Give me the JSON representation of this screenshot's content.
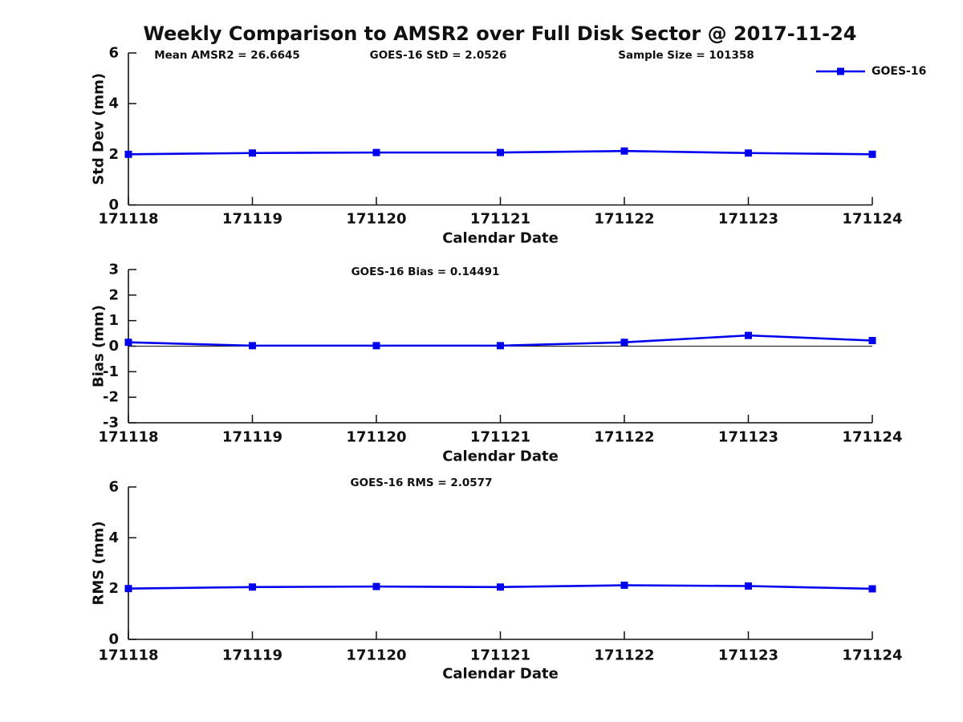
{
  "title": "Weekly Comparison to AMSR2 over Full Disk Sector @ 2017-11-24",
  "colors": {
    "series": "#0000EE",
    "axis": "#111111"
  },
  "chart_data": [
    {
      "type": "line",
      "name": "std-dev-plot",
      "annotations": [
        "Mean AMSR2 = 26.6645",
        "GOES-16 StD = 2.0526",
        "Sample Size = 101358"
      ],
      "categories": [
        "171118",
        "171119",
        "171120",
        "171121",
        "171122",
        "171123",
        "171124"
      ],
      "series": [
        {
          "name": "GOES-16",
          "values": [
            2.0,
            2.05,
            2.07,
            2.07,
            2.13,
            2.05,
            2.0
          ]
        }
      ],
      "xlabel": "Calendar Date",
      "ylabel": "Std Dev (mm)",
      "ylim": [
        0,
        6
      ],
      "yticks": [
        0,
        2,
        4,
        6
      ],
      "grid": false,
      "legend": {
        "position": "top-right",
        "entries": [
          "GOES-16"
        ]
      }
    },
    {
      "type": "line",
      "name": "bias-plot",
      "annotations": [
        "GOES-16 Bias  = 0.14491"
      ],
      "categories": [
        "171118",
        "171119",
        "171120",
        "171121",
        "171122",
        "171123",
        "171124"
      ],
      "series": [
        {
          "name": "GOES-16",
          "values": [
            0.15,
            0.02,
            0.02,
            0.02,
            0.15,
            0.42,
            0.22
          ]
        }
      ],
      "xlabel": "Calendar Date",
      "ylabel": "Bias (mm)",
      "ylim": [
        -3,
        3
      ],
      "yticks": [
        -3,
        -2,
        -1,
        0,
        1,
        2,
        3
      ],
      "grid": false,
      "zero_line": true
    },
    {
      "type": "line",
      "name": "rms-plot",
      "annotations": [
        "GOES-16 RMS = 2.0577"
      ],
      "categories": [
        "171118",
        "171119",
        "171120",
        "171121",
        "171122",
        "171123",
        "171124"
      ],
      "series": [
        {
          "name": "GOES-16",
          "values": [
            2.0,
            2.06,
            2.08,
            2.06,
            2.13,
            2.1,
            1.99
          ]
        }
      ],
      "xlabel": "Calendar Date",
      "ylabel": "RMS (mm)",
      "ylim": [
        0,
        6
      ],
      "yticks": [
        0,
        2,
        4,
        6
      ],
      "grid": false
    }
  ]
}
